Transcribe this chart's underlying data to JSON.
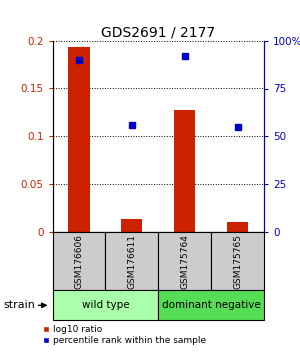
{
  "title": "GDS2691 / 2177",
  "samples": [
    "GSM176606",
    "GSM176611",
    "GSM175764",
    "GSM175765"
  ],
  "log10_ratio": [
    0.193,
    0.013,
    0.128,
    0.01
  ],
  "percentile_rank": [
    90,
    56,
    92,
    55
  ],
  "ylim_left": [
    0,
    0.2
  ],
  "ylim_right": [
    0,
    100
  ],
  "yticks_left": [
    0,
    0.05,
    0.1,
    0.15,
    0.2
  ],
  "yticks_right": [
    0,
    25,
    50,
    75,
    100
  ],
  "ytick_labels_right": [
    "0",
    "25",
    "50",
    "75",
    "100%"
  ],
  "ytick_labels_left": [
    "0",
    "0.05",
    "0.1",
    "0.15",
    "0.2"
  ],
  "bar_color": "#cc2200",
  "dot_color": "#0000cc",
  "groups": [
    {
      "label": "wild type",
      "samples": [
        0,
        1
      ],
      "color": "#aaffaa"
    },
    {
      "label": "dominant negative",
      "samples": [
        2,
        3
      ],
      "color": "#55dd55"
    }
  ],
  "sample_box_color": "#cccccc",
  "legend_bar_label": "log10 ratio",
  "legend_dot_label": "percentile rank within the sample",
  "strain_label": "strain"
}
